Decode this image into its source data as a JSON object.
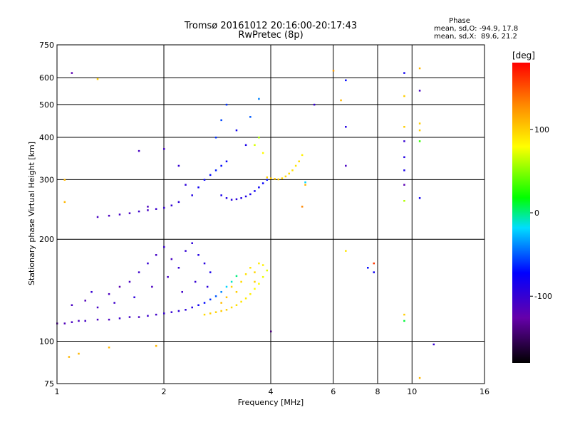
{
  "chart_data": {
    "type": "scatter",
    "title": "Tromsø 20161012 20:16:00-20:17:43",
    "subtitle": "RwPretec (8p)",
    "xlabel": "Frequency [MHz]",
    "ylabel": "Stationary phase Virtual Height [km]",
    "x_scale": "log",
    "y_scale": "log",
    "xlim": [
      1,
      16
    ],
    "ylim": [
      75,
      750
    ],
    "x_ticks": [
      "1",
      "2",
      "4",
      "6",
      "8",
      "10",
      "16"
    ],
    "y_ticks": [
      "75",
      "100",
      "200",
      "300",
      "400",
      "500",
      "600",
      "750"
    ],
    "x_gridlines": [
      2,
      4,
      6,
      8,
      10
    ],
    "y_gridlines": [
      100,
      200,
      300,
      400,
      500,
      600
    ],
    "grid": true,
    "phase_stats": {
      "heading": "Phase",
      "line_o": "mean, sd,O: -94.9, 17.8",
      "line_x": "mean, sd,X:  89.6, 21.2"
    },
    "colorbar": {
      "label": "[deg]",
      "ticks": [
        "100",
        "0",
        "-100"
      ],
      "tick_values": [
        100,
        0,
        -100
      ],
      "range": [
        -180,
        180
      ],
      "colormap": "rainbow (black-purple-blue-cyan-green-yellow-red)"
    },
    "series": [
      {
        "trace": "lower-O-trace",
        "points": [
          [
            1.0,
            113,
            -120
          ],
          [
            1.05,
            113,
            -115
          ],
          [
            1.1,
            114,
            -110
          ],
          [
            1.15,
            115,
            -112
          ],
          [
            1.2,
            115,
            -108
          ],
          [
            1.3,
            116,
            -110
          ],
          [
            1.4,
            116,
            -112
          ],
          [
            1.5,
            117,
            -105
          ],
          [
            1.6,
            118,
            -108
          ],
          [
            1.7,
            118,
            -110
          ],
          [
            1.8,
            119,
            -104
          ],
          [
            1.9,
            120,
            -106
          ],
          [
            2.0,
            121,
            -102
          ],
          [
            2.1,
            122,
            -100
          ],
          [
            2.2,
            123,
            -98
          ],
          [
            2.3,
            124,
            -95
          ],
          [
            2.4,
            126,
            -90
          ],
          [
            2.5,
            128,
            -80
          ],
          [
            2.6,
            130,
            -70
          ],
          [
            2.7,
            133,
            -60
          ],
          [
            2.8,
            136,
            -50
          ],
          [
            2.9,
            140,
            -40
          ],
          [
            3.0,
            145,
            -20
          ],
          [
            3.1,
            150,
            -10
          ],
          [
            3.2,
            156,
            0
          ],
          [
            1.1,
            128,
            -110
          ],
          [
            1.2,
            132,
            -115
          ],
          [
            1.3,
            126,
            -108
          ],
          [
            1.4,
            138,
            -112
          ],
          [
            1.5,
            145,
            -120
          ],
          [
            1.6,
            150,
            -110
          ],
          [
            1.7,
            160,
            -105
          ],
          [
            1.8,
            170,
            -100
          ],
          [
            1.9,
            180,
            -108
          ],
          [
            2.0,
            190,
            -102
          ],
          [
            2.1,
            175,
            -110
          ],
          [
            2.2,
            165,
            -100
          ],
          [
            2.3,
            185,
            -98
          ],
          [
            2.4,
            195,
            -96
          ],
          [
            2.5,
            180,
            -90
          ],
          [
            2.6,
            170,
            -92
          ],
          [
            2.7,
            160,
            -85
          ],
          [
            1.25,
            140,
            -100
          ],
          [
            1.45,
            130,
            -105
          ],
          [
            1.65,
            135,
            -95
          ],
          [
            1.85,
            145,
            -112
          ],
          [
            2.05,
            155,
            -108
          ],
          [
            2.25,
            140,
            -106
          ],
          [
            2.45,
            150,
            -100
          ],
          [
            2.65,
            145,
            -95
          ]
        ]
      },
      {
        "trace": "lower-X-trace",
        "points": [
          [
            2.6,
            120,
            95
          ],
          [
            2.7,
            121,
            100
          ],
          [
            2.8,
            122,
            98
          ],
          [
            2.9,
            123,
            102
          ],
          [
            3.0,
            124,
            100
          ],
          [
            3.1,
            126,
            95
          ],
          [
            3.2,
            128,
            92
          ],
          [
            3.3,
            131,
            90
          ],
          [
            3.4,
            134,
            88
          ],
          [
            3.5,
            138,
            85
          ],
          [
            3.6,
            143,
            80
          ],
          [
            3.7,
            148,
            78
          ],
          [
            3.8,
            155,
            75
          ],
          [
            3.9,
            162,
            72
          ],
          [
            3.3,
            150,
            95
          ],
          [
            3.4,
            158,
            92
          ],
          [
            3.5,
            165,
            90
          ],
          [
            3.6,
            160,
            96
          ],
          [
            3.7,
            170,
            88
          ],
          [
            3.2,
            140,
            100
          ],
          [
            3.0,
            135,
            105
          ],
          [
            2.9,
            130,
            108
          ],
          [
            3.1,
            145,
            97
          ],
          [
            3.6,
            150,
            99
          ],
          [
            3.8,
            168,
            85
          ]
        ]
      },
      {
        "trace": "upper-O-trace",
        "points": [
          [
            1.3,
            233,
            -110
          ],
          [
            1.4,
            235,
            -112
          ],
          [
            1.5,
            237,
            -108
          ],
          [
            1.6,
            239,
            -110
          ],
          [
            1.7,
            242,
            -105
          ],
          [
            1.8,
            244,
            -108
          ],
          [
            1.9,
            246,
            -104
          ],
          [
            2.0,
            248,
            -100
          ],
          [
            2.1,
            252,
            -98
          ],
          [
            2.2,
            258,
            -96
          ],
          [
            2.4,
            270,
            -90
          ],
          [
            2.5,
            285,
            -80
          ],
          [
            2.6,
            300,
            -75
          ],
          [
            2.7,
            310,
            -70
          ],
          [
            2.8,
            320,
            -65
          ],
          [
            2.9,
            330,
            -70
          ],
          [
            3.0,
            340,
            -75
          ],
          [
            2.9,
            270,
            -85
          ],
          [
            3.0,
            265,
            -90
          ],
          [
            3.1,
            262,
            -92
          ],
          [
            3.2,
            263,
            -95
          ],
          [
            3.3,
            265,
            -90
          ],
          [
            3.4,
            268,
            -88
          ],
          [
            3.5,
            272,
            -85
          ],
          [
            3.6,
            278,
            -80
          ],
          [
            3.7,
            285,
            -78
          ],
          [
            3.8,
            293,
            -75
          ],
          [
            3.9,
            300,
            -70
          ],
          [
            2.8,
            400,
            -60
          ],
          [
            2.9,
            450,
            -55
          ],
          [
            3.0,
            500,
            -60
          ],
          [
            3.2,
            420,
            -80
          ],
          [
            3.4,
            380,
            -85
          ],
          [
            3.5,
            460,
            -50
          ],
          [
            3.7,
            520,
            -40
          ],
          [
            1.7,
            365,
            -110
          ],
          [
            2.0,
            370,
            -108
          ],
          [
            2.2,
            330,
            -100
          ],
          [
            2.3,
            290,
            -95
          ],
          [
            1.8,
            250,
            -112
          ]
        ]
      },
      {
        "trace": "upper-X-trace",
        "points": [
          [
            3.9,
            305,
            100
          ],
          [
            4.0,
            303,
            102
          ],
          [
            4.1,
            302,
            104
          ],
          [
            4.2,
            301,
            100
          ],
          [
            4.3,
            303,
            98
          ],
          [
            4.4,
            307,
            96
          ],
          [
            4.5,
            313,
            94
          ],
          [
            4.6,
            320,
            92
          ],
          [
            4.7,
            330,
            90
          ],
          [
            4.8,
            340,
            95
          ],
          [
            3.6,
            380,
            70
          ],
          [
            3.7,
            400,
            60
          ],
          [
            3.8,
            360,
            80
          ],
          [
            4.9,
            355,
            85
          ],
          [
            5.0,
            290,
            110
          ]
        ]
      },
      {
        "trace": "scattered",
        "points": [
          [
            9.5,
            620,
            -80
          ],
          [
            9.5,
            530,
            100
          ],
          [
            9.5,
            430,
            100
          ],
          [
            9.5,
            390,
            -100
          ],
          [
            9.5,
            350,
            -90
          ],
          [
            9.5,
            320,
            -85
          ],
          [
            9.5,
            290,
            -120
          ],
          [
            9.5,
            260,
            60
          ],
          [
            9.5,
            120,
            100
          ],
          [
            9.5,
            115,
            10
          ],
          [
            10.5,
            640,
            110
          ],
          [
            10.5,
            550,
            -110
          ],
          [
            10.5,
            440,
            100
          ],
          [
            10.5,
            420,
            100
          ],
          [
            10.5,
            390,
            30
          ],
          [
            10.5,
            265,
            -80
          ],
          [
            6.5,
            590,
            -70
          ],
          [
            6.5,
            430,
            -90
          ],
          [
            6.5,
            330,
            -110
          ],
          [
            6.5,
            185,
            90
          ],
          [
            6.3,
            515,
            110
          ],
          [
            5.3,
            500,
            -100
          ],
          [
            6.0,
            630,
            120
          ],
          [
            7.5,
            165,
            -70
          ],
          [
            7.8,
            170,
            160
          ],
          [
            7.8,
            160,
            -80
          ],
          [
            11.5,
            98,
            -100
          ],
          [
            1.05,
            300,
            110
          ],
          [
            1.05,
            258,
            110
          ],
          [
            1.3,
            595,
            100
          ],
          [
            1.1,
            620,
            -120
          ],
          [
            1.08,
            90,
            110
          ],
          [
            1.15,
            92,
            110
          ],
          [
            1.4,
            96,
            110
          ],
          [
            1.9,
            97,
            110
          ],
          [
            4.0,
            107,
            -140
          ],
          [
            5.0,
            295,
            -20
          ],
          [
            4.9,
            250,
            130
          ],
          [
            10.5,
            78,
            110
          ]
        ]
      }
    ]
  }
}
